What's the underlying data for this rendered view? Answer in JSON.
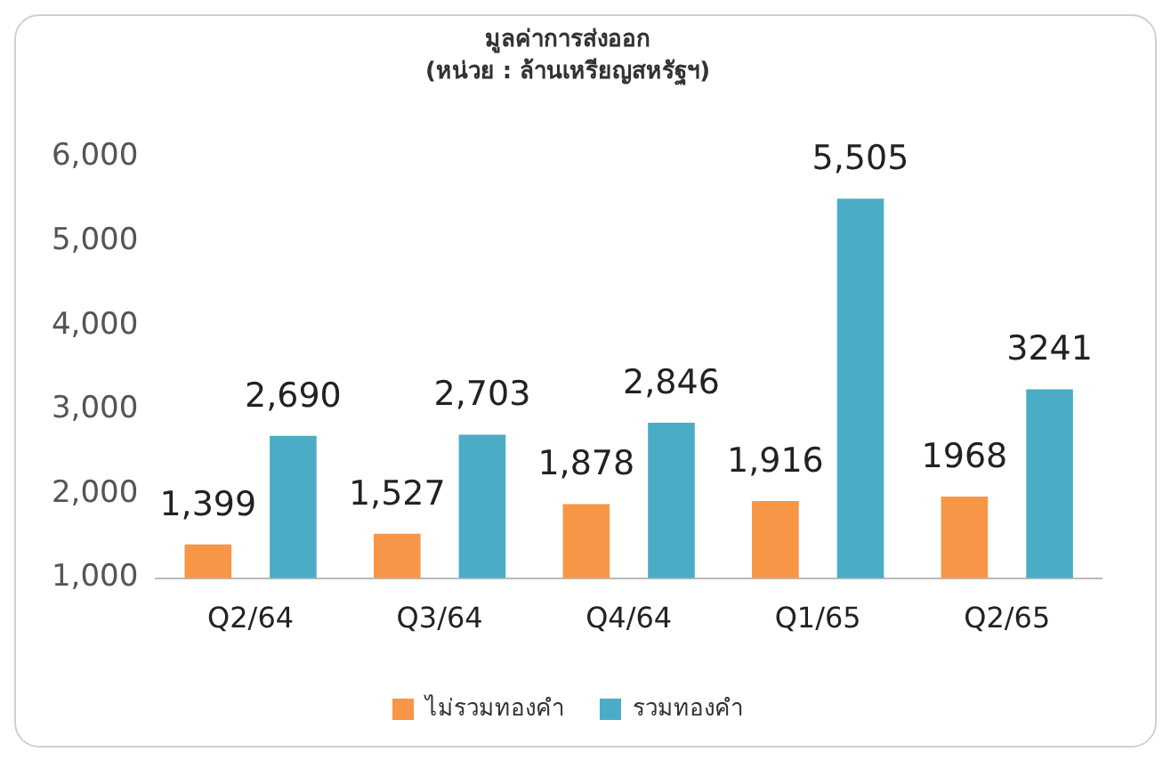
{
  "chart_data": {
    "type": "bar",
    "title": "มูลค่าการส่งออก",
    "subtitle": "(หน่วย : ล้านเหรียญสหรัฐฯ)",
    "categories": [
      "Q2/64",
      "Q3/64",
      "Q4/64",
      "Q1/65",
      "Q2/65"
    ],
    "series": [
      {
        "name": "ไม่รวมทองคำ",
        "color": "#f79646",
        "values": [
          1399,
          1527,
          1878,
          1916,
          1968
        ],
        "value_labels": [
          "1,399",
          "1,527",
          "1,878",
          "1,916",
          "1968"
        ]
      },
      {
        "name": "รวมทองคำ",
        "color": "#4bacc6",
        "values": [
          2690,
          2703,
          2846,
          5505,
          3241
        ],
        "value_labels": [
          "2,690",
          "2,703",
          "2,846",
          "5,505",
          "3241"
        ]
      }
    ],
    "ylim": [
      1000,
      6000
    ],
    "yticks": [
      {
        "value": 1000,
        "label": "1,000"
      },
      {
        "value": 2000,
        "label": "2,000"
      },
      {
        "value": 3000,
        "label": "3,000"
      },
      {
        "value": 4000,
        "label": "4,000"
      },
      {
        "value": 5000,
        "label": "5,000"
      },
      {
        "value": 6000,
        "label": "6,000"
      }
    ],
    "grid": false,
    "legend": "bottom"
  }
}
